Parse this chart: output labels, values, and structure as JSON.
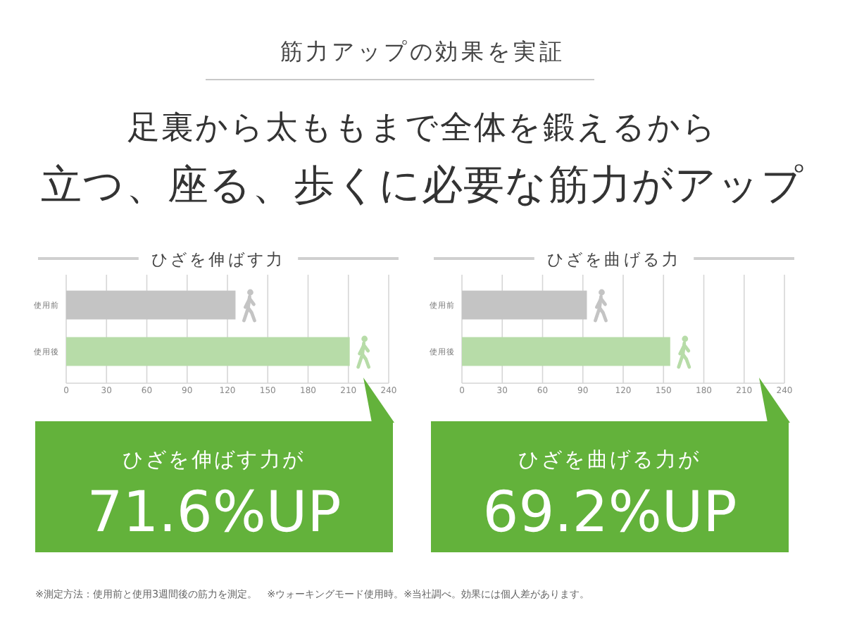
{
  "chart_data": [
    {
      "type": "other",
      "subtitle": "筋力アップの効果を実証",
      "title": "足裏から太ももまで全体を鍛えるから立つ、座る、歩くに必要な筋力がアップ",
      "annotations": [
        "※測定方法：使用前と使用3週間後の筋力を測定。　※ウォーキングモード使用時。※当社調べ。効果には個人差があります。"
      ]
    },
    {
      "type": "bar",
      "orientation": "horizontal",
      "title": "ひざを伸ばす力",
      "categories": [
        "使用前",
        "使用後"
      ],
      "values": [
        126,
        211
      ],
      "colors": [
        "#c4c4c4",
        "#b7dca8"
      ],
      "xlim": [
        0,
        240
      ],
      "xticks": [
        0,
        30,
        60,
        90,
        120,
        150,
        180,
        210,
        240
      ],
      "grid": "x",
      "annotations": [
        "ひざを伸ばす力が",
        "71.6%UP"
      ]
    },
    {
      "type": "bar",
      "orientation": "horizontal",
      "title": "ひざを曲げる力",
      "categories": [
        "使用前",
        "使用後"
      ],
      "values": [
        93,
        155
      ],
      "colors": [
        "#c4c4c4",
        "#b7dca8"
      ],
      "xlim": [
        0,
        240
      ],
      "xticks": [
        0,
        30,
        60,
        90,
        120,
        150,
        180,
        210,
        240
      ],
      "grid": "x",
      "annotations": [
        "ひざを曲げる力が",
        "69.2%UP"
      ]
    }
  ]
}
